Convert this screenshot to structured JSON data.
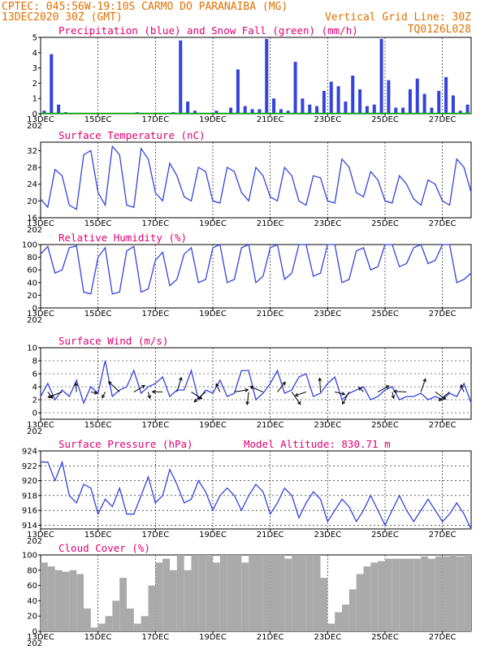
{
  "header": {
    "line1": "CPTEC:   045:56W-19:10S   CARMO DO PARANAIBA (MG)",
    "line2_left": "13DEC2020 30Z (GMT)",
    "line2_right": "Vertical Grid Line: 30Z",
    "line3_right": "TQ0126L028"
  },
  "x_axis": {
    "ticks": [
      "13DEC",
      "15DEC",
      "17DEC",
      "19DEC",
      "21DEC",
      "23DEC",
      "25DEC",
      "27DEC"
    ],
    "under_label": "202"
  },
  "panels": [
    {
      "id": "precip",
      "title": "Precipitation (blue) and Snow Fall (green) (mm/h)",
      "yticks": [
        "0",
        "1",
        "2",
        "3",
        "4",
        "5"
      ]
    },
    {
      "id": "temp",
      "title": "Surface Temperature (nC)",
      "yticks": [
        "16",
        "20",
        "24",
        "28",
        "32"
      ]
    },
    {
      "id": "rh",
      "title": "Relative Humidity (%)",
      "yticks": [
        "0",
        "20",
        "40",
        "60",
        "80",
        "100"
      ]
    },
    {
      "id": "wind",
      "title": "Surface Wind (m/s)",
      "yticks": [
        "0",
        "2",
        "4",
        "6",
        "8",
        "10"
      ]
    },
    {
      "id": "press",
      "title": "Surface Pressure (hPa)",
      "extra": "Model Altitude: 830.71 m",
      "yticks": [
        "914",
        "916",
        "918",
        "920",
        "922",
        "924"
      ]
    },
    {
      "id": "cloud",
      "title": "Cloud Cover (%)",
      "yticks": [
        "0",
        "20",
        "40",
        "60",
        "80",
        "100"
      ]
    }
  ],
  "colors": {
    "series": "#3344dd",
    "snow": "#00aa00",
    "cloud": "#aaaaaa",
    "header": "#e07000",
    "title": "#e0006e"
  },
  "chart_data": [
    {
      "type": "bar",
      "title": "Precipitation (blue) and Snow Fall (green) (mm/h)",
      "x": [
        "13DEC 06",
        "13DEC 12",
        "13DEC 18",
        "14DEC 00",
        "16DEC 12",
        "17DEC 18",
        "18DEC 00",
        "18DEC 06",
        "18DEC 12",
        "19DEC 06",
        "19DEC 18",
        "20DEC 00",
        "20DEC 06",
        "20DEC 12",
        "20DEC 18",
        "21DEC 00",
        "21DEC 06",
        "21DEC 12",
        "21DEC 18",
        "22DEC 00",
        "22DEC 06",
        "22DEC 12",
        "22DEC 18",
        "23DEC 00",
        "23DEC 06",
        "23DEC 12",
        "23DEC 18",
        "24DEC 00",
        "24DEC 06",
        "24DEC 12",
        "24DEC 18",
        "25DEC 00",
        "25DEC 06",
        "25DEC 12",
        "25DEC 18",
        "26DEC 00",
        "26DEC 06",
        "26DEC 12",
        "26DEC 18",
        "27DEC 00",
        "27DEC 06",
        "27DEC 12",
        "27DEC 18",
        "28DEC 00"
      ],
      "series": [
        {
          "name": "Precipitation",
          "values": [
            0.2,
            3.9,
            0.6,
            0.1,
            0.1,
            0.1,
            4.8,
            0.8,
            0.2,
            0.2,
            0.4,
            2.9,
            0.5,
            0.3,
            0.3,
            4.9,
            1.0,
            0.3,
            0.2,
            3.4,
            1.0,
            0.6,
            0.5,
            1.5,
            2.1,
            1.8,
            0.8,
            2.5,
            1.6,
            0.5,
            0.6,
            4.9,
            2.2,
            0.4,
            0.4,
            1.6,
            2.3,
            1.3,
            0.4,
            1.5,
            2.4,
            1.2,
            0.2,
            0.6
          ]
        },
        {
          "name": "Snow Fall",
          "values": [
            0,
            0,
            0,
            0,
            0,
            0,
            0,
            0,
            0,
            0,
            0,
            0,
            0,
            0,
            0,
            0,
            0,
            0,
            0,
            0,
            0,
            0,
            0,
            0,
            0,
            0,
            0,
            0,
            0,
            0,
            0,
            0,
            0,
            0,
            0,
            0,
            0,
            0,
            0,
            0,
            0,
            0,
            0,
            0
          ]
        }
      ],
      "ylim": [
        0,
        5
      ]
    },
    {
      "type": "line",
      "title": "Surface Temperature (nC)",
      "x": [
        0,
        0.25,
        0.5,
        0.75,
        1,
        1.25,
        1.5,
        1.75,
        2,
        2.25,
        2.5,
        2.75,
        3,
        3.25,
        3.5,
        3.75,
        4,
        4.25,
        4.5,
        4.75,
        5,
        5.25,
        5.5,
        5.75,
        6,
        6.25,
        6.5,
        6.75,
        7,
        7.25,
        7.5,
        7.75,
        8,
        8.25,
        8.5,
        8.75,
        9,
        9.25,
        9.5,
        9.75,
        10,
        10.25,
        10.5,
        10.75,
        11,
        11.25,
        11.5,
        11.75,
        12,
        12.25,
        12.5,
        12.75,
        13,
        13.25,
        13.5,
        13.75,
        14,
        14.25,
        14.5,
        14.75,
        15
      ],
      "x_start": "13DEC",
      "x_unit": "days",
      "values": [
        20.5,
        18.5,
        27.5,
        26,
        19,
        18,
        31,
        32,
        22,
        19,
        33,
        31,
        19,
        18.5,
        32.5,
        30,
        22,
        20,
        29,
        26,
        21,
        20,
        28,
        27,
        20,
        19.5,
        28,
        27,
        22,
        20,
        28,
        26,
        21,
        20,
        28,
        26,
        20,
        19,
        26,
        25.5,
        20,
        19.5,
        30,
        28,
        22,
        21,
        27,
        25,
        20,
        19.5,
        26,
        24,
        20.5,
        19,
        25,
        24,
        20,
        19,
        30,
        28,
        22
      ],
      "ylim": [
        16,
        34
      ]
    },
    {
      "type": "line",
      "title": "Relative Humidity (%)",
      "x": [
        0,
        0.25,
        0.5,
        0.75,
        1,
        1.25,
        1.5,
        1.75,
        2,
        2.25,
        2.5,
        2.75,
        3,
        3.25,
        3.5,
        3.75,
        4,
        4.25,
        4.5,
        4.75,
        5,
        5.25,
        5.5,
        5.75,
        6,
        6.25,
        6.5,
        6.75,
        7,
        7.25,
        7.5,
        7.75,
        8,
        8.25,
        8.5,
        8.75,
        9,
        9.25,
        9.5,
        9.75,
        10,
        10.25,
        10.5,
        10.75,
        11,
        11.25,
        11.5,
        11.75,
        12,
        12.25,
        12.5,
        12.75,
        13,
        13.25,
        13.5,
        13.75,
        14,
        14.25,
        14.5,
        14.75,
        15
      ],
      "x_start": "13DEC",
      "x_unit": "days",
      "values": [
        85,
        97,
        55,
        60,
        95,
        98,
        25,
        22,
        80,
        95,
        22,
        25,
        90,
        97,
        25,
        30,
        75,
        88,
        35,
        45,
        85,
        95,
        40,
        45,
        95,
        100,
        40,
        45,
        95,
        100,
        40,
        50,
        95,
        100,
        45,
        55,
        100,
        100,
        50,
        55,
        100,
        100,
        40,
        45,
        90,
        95,
        60,
        65,
        100,
        100,
        65,
        70,
        95,
        100,
        70,
        75,
        100,
        100,
        40,
        45,
        55
      ],
      "ylim": [
        0,
        100
      ]
    },
    {
      "type": "line",
      "title": "Surface Wind (m/s)",
      "x": [
        0,
        0.25,
        0.5,
        0.75,
        1,
        1.25,
        1.5,
        1.75,
        2,
        2.25,
        2.5,
        2.75,
        3,
        3.25,
        3.5,
        3.75,
        4,
        4.25,
        4.5,
        4.75,
        5,
        5.25,
        5.5,
        5.75,
        6,
        6.25,
        6.5,
        6.75,
        7,
        7.25,
        7.5,
        7.75,
        8,
        8.25,
        8.5,
        8.75,
        9,
        9.25,
        9.5,
        9.75,
        10,
        10.25,
        10.5,
        10.75,
        11,
        11.25,
        11.5,
        11.75,
        12,
        12.25,
        12.5,
        12.75,
        13,
        13.25,
        13.5,
        13.75,
        14,
        14.25,
        14.5,
        14.75,
        15
      ],
      "x_start": "13DEC",
      "x_unit": "days",
      "values": [
        2.5,
        4.5,
        2,
        3.5,
        2.5,
        5,
        1.5,
        4,
        3,
        8,
        2.5,
        3.5,
        4,
        6.5,
        3,
        4,
        4.5,
        5.5,
        2.5,
        3.5,
        3.5,
        6.5,
        2,
        3.5,
        3,
        5,
        2.5,
        3,
        6.5,
        6.5,
        2,
        3,
        4.5,
        6.5,
        3,
        3.5,
        5.5,
        6,
        2.5,
        3,
        4.5,
        5.5,
        2,
        3,
        3.5,
        4,
        2,
        2.5,
        3.5,
        4,
        2,
        2.5,
        2.5,
        3,
        2,
        2.5,
        2,
        3,
        2.5,
        4.5,
        1.5
      ],
      "ylim": [
        -1,
        10
      ]
    },
    {
      "type": "line",
      "title": "Surface Pressure (hPa)",
      "x": [
        0,
        0.25,
        0.5,
        0.75,
        1,
        1.25,
        1.5,
        1.75,
        2,
        2.25,
        2.5,
        2.75,
        3,
        3.25,
        3.5,
        3.75,
        4,
        4.25,
        4.5,
        4.75,
        5,
        5.25,
        5.5,
        5.75,
        6,
        6.25,
        6.5,
        6.75,
        7,
        7.25,
        7.5,
        7.75,
        8,
        8.25,
        8.5,
        8.75,
        9,
        9.25,
        9.5,
        9.75,
        10,
        10.25,
        10.5,
        10.75,
        11,
        11.25,
        11.5,
        11.75,
        12,
        12.25,
        12.5,
        12.75,
        13,
        13.25,
        13.5,
        13.75,
        14,
        14.25,
        14.5,
        14.75,
        15
      ],
      "x_start": "13DEC",
      "x_unit": "days",
      "values": [
        922.5,
        922.5,
        920,
        922.5,
        918,
        917,
        919.5,
        919,
        915.5,
        917.5,
        916.5,
        919,
        915.5,
        915.5,
        918,
        920.5,
        917,
        918,
        921.5,
        919.5,
        917,
        917.5,
        920,
        918.5,
        916,
        918,
        919,
        918,
        916,
        918,
        919.5,
        918.5,
        915.5,
        917,
        919,
        918,
        915,
        917,
        918.5,
        917.5,
        914.5,
        916,
        917.5,
        916.5,
        914.5,
        916,
        918,
        916,
        914,
        916,
        918,
        916,
        914.5,
        916,
        917.5,
        916,
        914.5,
        915.5,
        917,
        915.5,
        913.5
      ],
      "ylim": [
        913.5,
        924
      ]
    },
    {
      "type": "area",
      "title": "Cloud Cover (%)",
      "x": [
        0,
        0.25,
        0.5,
        0.75,
        1,
        1.25,
        1.5,
        1.75,
        2,
        2.25,
        2.5,
        2.75,
        3,
        3.25,
        3.5,
        3.75,
        4,
        4.25,
        4.5,
        4.75,
        5,
        5.25,
        5.5,
        5.75,
        6,
        6.25,
        6.5,
        6.75,
        7,
        7.25,
        7.5,
        7.75,
        8,
        8.25,
        8.5,
        8.75,
        9,
        9.25,
        9.5,
        9.75,
        10,
        10.25,
        10.5,
        10.75,
        11,
        11.25,
        11.5,
        11.75,
        12,
        12.25,
        12.5,
        12.75,
        13,
        13.25,
        13.5,
        13.75,
        14,
        14.25,
        14.5,
        14.75,
        15
      ],
      "x_start": "13DEC",
      "x_unit": "days",
      "values": [
        90,
        85,
        80,
        78,
        80,
        75,
        30,
        5,
        10,
        20,
        40,
        70,
        30,
        10,
        20,
        60,
        90,
        95,
        80,
        100,
        80,
        100,
        100,
        100,
        90,
        100,
        100,
        100,
        90,
        100,
        100,
        100,
        100,
        100,
        95,
        100,
        100,
        100,
        100,
        70,
        10,
        25,
        35,
        55,
        75,
        85,
        90,
        92,
        95,
        95,
        95,
        95,
        95,
        98,
        95,
        98,
        98,
        100,
        98,
        100,
        100
      ],
      "ylim": [
        0,
        100
      ]
    }
  ]
}
